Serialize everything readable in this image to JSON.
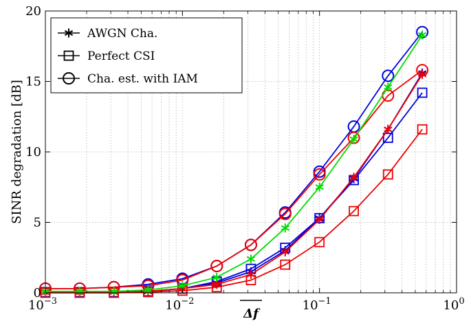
{
  "chart_data": {
    "type": "line",
    "xscale": "log",
    "xlim": [
      0.001,
      1
    ],
    "ylim": [
      0,
      20
    ],
    "xlabel": "Δf",
    "ylabel": "SINR degradation [dB]",
    "grid": true,
    "legend_position": "top-left",
    "x_ticks": [
      {
        "value": 0.001,
        "base": "10",
        "exp": "−3"
      },
      {
        "value": 0.01,
        "base": "10",
        "exp": "−2"
      },
      {
        "value": 0.1,
        "base": "10",
        "exp": "−1"
      },
      {
        "value": 1,
        "base": "10",
        "exp": "0"
      }
    ],
    "y_ticks": [
      {
        "value": 0,
        "label": "0"
      },
      {
        "value": 5,
        "label": "5"
      },
      {
        "value": 10,
        "label": "10"
      },
      {
        "value": 15,
        "label": "15"
      },
      {
        "value": 20,
        "label": "20"
      }
    ],
    "legend": [
      {
        "label": "AWGN Cha.",
        "marker": "star"
      },
      {
        "label": "Perfect CSI",
        "marker": "square"
      },
      {
        "label": "Cha. est. with IAM",
        "marker": "circle"
      }
    ],
    "x": [
      0.001,
      0.00178,
      0.00316,
      0.00562,
      0.01,
      0.0178,
      0.0316,
      0.0562,
      0.1,
      0.178,
      0.316,
      0.562
    ],
    "series": [
      {
        "color": "#00dd00",
        "marker": "star",
        "values": [
          0.1,
          0.1,
          0.1,
          0.2,
          0.5,
          1.1,
          2.4,
          4.6,
          7.5,
          10.9,
          14.6,
          18.3
        ]
      },
      {
        "color": "#0000dd",
        "marker": "square",
        "values": [
          0.05,
          0.05,
          0.05,
          0.1,
          0.3,
          0.8,
          1.7,
          3.2,
          5.3,
          8.0,
          11.0,
          14.2
        ]
      },
      {
        "color": "#0000dd",
        "marker": "circle",
        "values": [
          0.3,
          0.3,
          0.4,
          0.6,
          1.0,
          1.9,
          3.4,
          5.7,
          8.6,
          11.8,
          15.4,
          18.5
        ]
      },
      {
        "color": "#0000dd",
        "marker": "star",
        "values": [
          0.05,
          0.05,
          0.05,
          0.1,
          0.3,
          0.7,
          1.5,
          3.0,
          5.3,
          8.1,
          11.6,
          15.6
        ]
      },
      {
        "color": "#ee0000",
        "marker": "square",
        "values": [
          0.0,
          0.0,
          0.0,
          0.05,
          0.15,
          0.4,
          0.9,
          2.0,
          3.6,
          5.8,
          8.4,
          11.6
        ]
      },
      {
        "color": "#ee0000",
        "marker": "circle",
        "values": [
          0.3,
          0.3,
          0.4,
          0.5,
          0.9,
          1.9,
          3.4,
          5.6,
          8.4,
          11.0,
          14.0,
          15.8
        ]
      },
      {
        "color": "#ee0000",
        "marker": "star",
        "values": [
          0.05,
          0.05,
          0.05,
          0.1,
          0.3,
          0.6,
          1.3,
          2.9,
          5.2,
          8.2,
          11.6,
          15.5
        ]
      }
    ]
  }
}
